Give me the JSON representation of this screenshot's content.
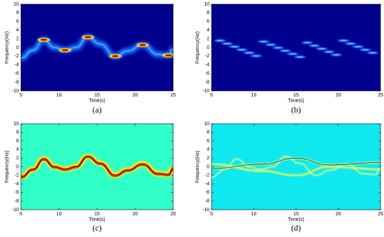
{
  "chart_data": [
    {
      "type": "heatmap",
      "xlabel": "Time(s)",
      "ylabel": "Frequency(Hz)",
      "caption": "(a)",
      "xlim": [
        5,
        25
      ],
      "ylim": [
        -10,
        10
      ],
      "xticks": [
        5,
        10,
        15,
        20,
        25
      ],
      "yticks": [
        -10,
        -8,
        -6,
        -4,
        -2,
        0,
        2,
        4,
        6,
        8,
        10
      ],
      "color": "#00008f"
    },
    {
      "type": "heatmap",
      "xlabel": "Time(s)",
      "ylabel": "Frequency(Hz)",
      "caption": "(b)",
      "xlim": [
        5,
        25
      ],
      "ylim": [
        -10,
        10
      ],
      "xticks": [
        5,
        10,
        15,
        20,
        25
      ],
      "yticks": [
        -10,
        -8,
        -6,
        -4,
        -2,
        0,
        2,
        4,
        6,
        8,
        10
      ],
      "color": "#00008f"
    },
    {
      "type": "heatmap",
      "xlabel": "Time(s)",
      "ylabel": "Frequency(Hz)",
      "caption": "(c)",
      "xlim": [
        5,
        25
      ],
      "ylim": [
        -10,
        10
      ],
      "xticks": [
        5,
        10,
        15,
        20,
        25
      ],
      "yticks": [
        -10,
        -8,
        -6,
        -4,
        -2,
        0,
        2,
        4,
        6,
        8,
        10
      ],
      "color": "#30ffc8"
    },
    {
      "type": "heatmap",
      "xlabel": "Time(s)",
      "ylabel": "Frequency(Hz)",
      "caption": "(d)",
      "xlim": [
        5,
        25
      ],
      "ylim": [
        -10,
        10
      ],
      "xticks": [
        5,
        10,
        15,
        20,
        25
      ],
      "yticks": [
        -10,
        -8,
        -6,
        -4,
        -2,
        0,
        2,
        4,
        6,
        8,
        10
      ],
      "color": "#10e8f0"
    }
  ]
}
